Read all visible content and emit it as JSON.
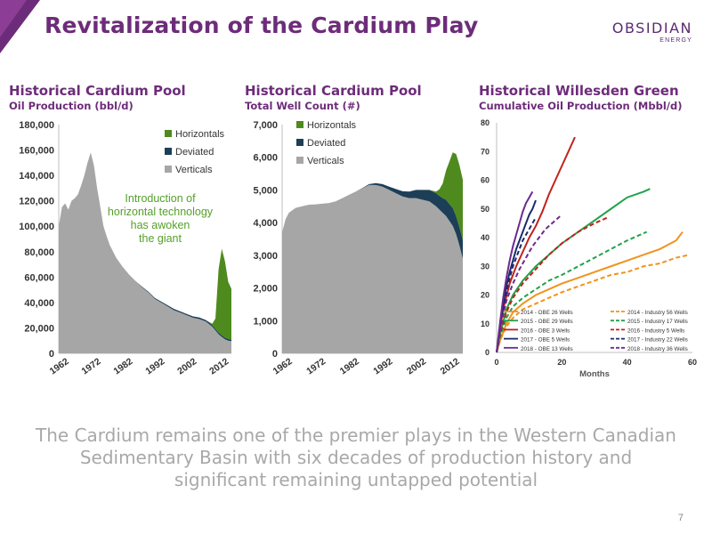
{
  "slide": {
    "title": "Revitalization of the Cardium Play",
    "logo": {
      "line1": "OBSIDIAN",
      "line2": "ENERGY"
    },
    "footer": "The Cardium remains one of the premier plays in the Western Canadian Sedimentary Basin with six decades of production history and significant remaining untapped potential",
    "page_number": "7",
    "colors": {
      "title": "#6d2c79",
      "horizontals": "#4f8a1e",
      "deviated": "#1c3f57",
      "verticals": "#a6a6a6",
      "annotation": "#55a02a"
    }
  },
  "chart_data": [
    {
      "type": "area",
      "title": "Historical Cardium Pool",
      "subtitle": "Oil Production (bbl/d)",
      "x_ticks": [
        "1962",
        "1972",
        "1982",
        "1992",
        "2002",
        "2012"
      ],
      "xlim": [
        1962,
        2016
      ],
      "y_ticks": [
        "0",
        "20,000",
        "40,000",
        "60,000",
        "80,000",
        "100,000",
        "120,000",
        "140,000",
        "160,000",
        "180,000"
      ],
      "ylim": [
        0,
        180000
      ],
      "legend": [
        "Horizontals",
        "Deviated",
        "Verticals"
      ],
      "legend_position": "top-right",
      "annotation": "Introduction of horizontal technology has awoken the giant",
      "x": [
        1962,
        1963,
        1964,
        1965,
        1966,
        1967,
        1968,
        1969,
        1970,
        1971,
        1972,
        1973,
        1974,
        1975,
        1976,
        1977,
        1978,
        1979,
        1980,
        1982,
        1984,
        1986,
        1988,
        1990,
        1992,
        1994,
        1996,
        1998,
        2000,
        2002,
        2004,
        2006,
        2008,
        2010,
        2011,
        2012,
        2013,
        2014,
        2015,
        2016
      ],
      "series": [
        {
          "name": "Verticals",
          "values": [
            100000,
            115000,
            118000,
            113000,
            120000,
            122000,
            125000,
            132000,
            140000,
            150000,
            158000,
            148000,
            130000,
            115000,
            100000,
            92000,
            85000,
            80000,
            75000,
            68000,
            62000,
            57000,
            52000,
            48000,
            43000,
            40000,
            37000,
            34000,
            32000,
            30000,
            28000,
            27000,
            25000,
            21000,
            18000,
            15000,
            13000,
            11000,
            10000,
            9500
          ]
        },
        {
          "name": "Deviated",
          "values": [
            0,
            0,
            0,
            0,
            0,
            0,
            0,
            0,
            0,
            0,
            0,
            0,
            0,
            0,
            0,
            0,
            0,
            0,
            0,
            0,
            0,
            0,
            500,
            600,
            700,
            800,
            900,
            1000,
            1000,
            1000,
            1100,
            1200,
            1200,
            1300,
            1300,
            1300,
            1300,
            1300,
            1300,
            1300
          ]
        },
        {
          "name": "Horizontals",
          "values": [
            0,
            0,
            0,
            0,
            0,
            0,
            0,
            0,
            0,
            0,
            0,
            0,
            0,
            0,
            0,
            0,
            0,
            0,
            0,
            0,
            0,
            0,
            0,
            0,
            0,
            0,
            0,
            0,
            0,
            0,
            0,
            0,
            0,
            1000,
            8000,
            50000,
            68000,
            60000,
            45000,
            40000
          ]
        }
      ]
    },
    {
      "type": "area",
      "title": "Historical Cardium Pool",
      "subtitle": "Total Well Count (#)",
      "x_ticks": [
        "1962",
        "1972",
        "1982",
        "1992",
        "2002",
        "2012"
      ],
      "xlim": [
        1962,
        2016
      ],
      "y_ticks": [
        "0",
        "1,000",
        "2,000",
        "3,000",
        "4,000",
        "5,000",
        "6,000",
        "7,000"
      ],
      "ylim": [
        0,
        7000
      ],
      "legend": [
        "Horizontals",
        "Deviated",
        "Verticals"
      ],
      "legend_position": "top-left",
      "x": [
        1962,
        1963,
        1964,
        1966,
        1968,
        1970,
        1972,
        1974,
        1976,
        1978,
        1980,
        1982,
        1984,
        1986,
        1988,
        1990,
        1992,
        1994,
        1996,
        1998,
        2000,
        2002,
        2004,
        2006,
        2008,
        2009,
        2010,
        2011,
        2012,
        2013,
        2014,
        2015,
        2016
      ],
      "series": [
        {
          "name": "Verticals",
          "values": [
            3700,
            4100,
            4300,
            4450,
            4500,
            4550,
            4560,
            4580,
            4600,
            4650,
            4750,
            4850,
            4950,
            5050,
            5150,
            5150,
            5100,
            5000,
            4900,
            4800,
            4750,
            4750,
            4700,
            4650,
            4500,
            4400,
            4300,
            4200,
            4050,
            3900,
            3650,
            3300,
            2900
          ]
        },
        {
          "name": "Deviated",
          "values": [
            0,
            0,
            0,
            0,
            0,
            0,
            0,
            0,
            0,
            0,
            0,
            0,
            0,
            10,
            30,
            60,
            80,
            100,
            130,
            160,
            200,
            250,
            300,
            350,
            400,
            420,
            450,
            500,
            520,
            550,
            550,
            560,
            560
          ]
        },
        {
          "name": "Horizontals",
          "values": [
            0,
            0,
            0,
            0,
            0,
            0,
            0,
            0,
            0,
            0,
            0,
            0,
            0,
            0,
            0,
            0,
            0,
            0,
            0,
            0,
            0,
            0,
            0,
            0,
            50,
            200,
            450,
            900,
            1300,
            1700,
            1900,
            1900,
            1850
          ]
        }
      ]
    },
    {
      "type": "line",
      "title": "Historical Willesden Green",
      "subtitle": "Cumulative Oil Production (Mbbl/d)",
      "xlabel": "Months",
      "x_ticks": [
        "0",
        "20",
        "40",
        "60"
      ],
      "xlim": [
        0,
        60
      ],
      "y_ticks": [
        "0",
        "10",
        "20",
        "30",
        "40",
        "50",
        "60",
        "70",
        "80"
      ],
      "ylim": [
        0,
        80
      ],
      "legend_position": "bottom-right",
      "series": [
        {
          "name": "2014 - OBE 26 Wells",
          "color": "#f0931e",
          "dash": false,
          "x": [
            0,
            1,
            3,
            5,
            8,
            12,
            16,
            20,
            25,
            30,
            35,
            40,
            45,
            50,
            55,
            57
          ],
          "y": [
            0,
            4,
            10,
            14,
            17,
            20,
            22,
            24,
            26,
            28,
            30,
            32,
            34,
            36,
            39,
            42
          ]
        },
        {
          "name": "2014 - Industry 56 Wells",
          "color": "#f0931e",
          "dash": true,
          "x": [
            0,
            1,
            3,
            5,
            8,
            12,
            16,
            20,
            25,
            30,
            35,
            40,
            45,
            50,
            55,
            59
          ],
          "y": [
            0,
            4,
            9,
            12,
            15,
            17,
            19,
            21,
            23,
            25,
            27,
            28,
            30,
            31,
            33,
            34
          ]
        },
        {
          "name": "2015 - OBE 29 Wells",
          "color": "#1fa34a",
          "dash": false,
          "x": [
            0,
            1,
            3,
            5,
            8,
            12,
            16,
            20,
            25,
            30,
            35,
            40,
            45,
            47
          ],
          "y": [
            0,
            6,
            15,
            20,
            25,
            30,
            34,
            38,
            42,
            46,
            50,
            54,
            56,
            57
          ]
        },
        {
          "name": "2015 - Industry 17 Wells",
          "color": "#1fa34a",
          "dash": true,
          "x": [
            0,
            1,
            3,
            5,
            8,
            12,
            16,
            20,
            25,
            30,
            35,
            40,
            46
          ],
          "y": [
            0,
            5,
            12,
            16,
            19,
            22,
            25,
            27,
            30,
            33,
            36,
            39,
            42
          ]
        },
        {
          "name": "2016 - OBE 3 Wells",
          "color": "#c0221c",
          "dash": false,
          "x": [
            0,
            1,
            2,
            4,
            6,
            8,
            10,
            12,
            14,
            16,
            18,
            20,
            22,
            24
          ],
          "y": [
            0,
            8,
            15,
            24,
            30,
            35,
            40,
            44,
            49,
            55,
            60,
            65,
            70,
            75
          ]
        },
        {
          "name": "2016 - Industry 5 Wells",
          "color": "#c0221c",
          "dash": true,
          "x": [
            0,
            1,
            3,
            5,
            8,
            12,
            16,
            20,
            25,
            30,
            34
          ],
          "y": [
            0,
            6,
            14,
            19,
            24,
            29,
            34,
            38,
            42,
            45,
            47
          ]
        },
        {
          "name": "2017 - OBE 5 Wells",
          "color": "#1a2a6c",
          "dash": false,
          "x": [
            0,
            1,
            2,
            3,
            4,
            5,
            6,
            7,
            8,
            9,
            10,
            11,
            12
          ],
          "y": [
            0,
            9,
            17,
            23,
            28,
            32,
            36,
            39,
            42,
            45,
            48,
            50,
            53
          ]
        },
        {
          "name": "2017 - Industry 22 Wells",
          "color": "#1a2a6c",
          "dash": true,
          "x": [
            0,
            1,
            2,
            3,
            4,
            5,
            6,
            7,
            8,
            9,
            10,
            11,
            12
          ],
          "y": [
            0,
            8,
            15,
            21,
            26,
            30,
            33,
            36,
            39,
            41,
            43,
            45,
            47
          ]
        },
        {
          "name": "2018 - OBE 13 Wells",
          "color": "#6c2a8e",
          "dash": false,
          "x": [
            0,
            1,
            2,
            3,
            4,
            5,
            6,
            7,
            8,
            9,
            10,
            11
          ],
          "y": [
            0,
            10,
            19,
            26,
            32,
            37,
            41,
            45,
            49,
            52,
            54,
            56
          ]
        },
        {
          "name": "2018 - Industry 36 Wells",
          "color": "#6c2a8e",
          "dash": true,
          "x": [
            0,
            1,
            2,
            3,
            5,
            7,
            9,
            11,
            13,
            15,
            17,
            19,
            20
          ],
          "y": [
            0,
            7,
            13,
            18,
            24,
            29,
            33,
            37,
            40,
            43,
            45,
            47,
            48
          ]
        }
      ]
    }
  ]
}
